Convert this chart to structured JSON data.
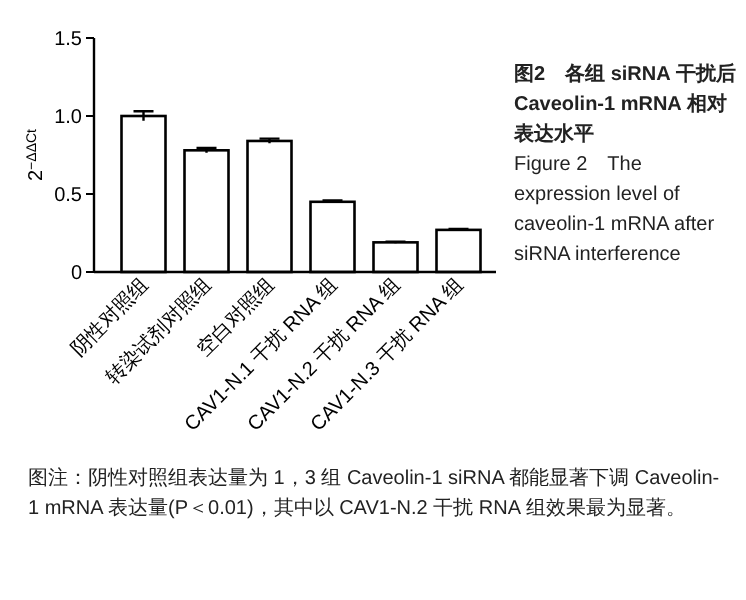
{
  "chart_data": {
    "type": "bar",
    "title": "图2　各组 siRNA 干扰后 Caveolin-1 mRNA 相对表达水平",
    "subtitle": "Figure 2　The expression level of caveolin-1 mRNA after siRNA interference",
    "ylabel": "2$^{−ΔΔCt}$",
    "categories": [
      "阴性对照组",
      "转染试剂对照组",
      "空白对照组",
      "CAV1-N.1 干扰 RNA 组",
      "CAV1-N.2 干扰 RNA 组",
      "CAV1-N.3 干扰 RNA 组"
    ],
    "values": [
      1.0,
      0.78,
      0.84,
      0.45,
      0.19,
      0.27
    ],
    "errors": [
      0.03,
      0.015,
      0.015,
      0.008,
      0.005,
      0.006
    ],
    "color": "#ffffff",
    "ylim": [
      0,
      1.5
    ],
    "yticks": [
      0,
      0.5,
      {
        "value": 1.0,
        "label": "1.0"
      },
      1.5
    ],
    "grid": false,
    "annotations": [
      "图注：阴性对照组表达量为 1，3 组 Caveolin-1 siRNA 都能显著下调 Caveolin-1 mRNA 表达量(P＜0.01)，其中以 CAV1-N.2 干扰 RNA 组效果最为显著。"
    ]
  }
}
